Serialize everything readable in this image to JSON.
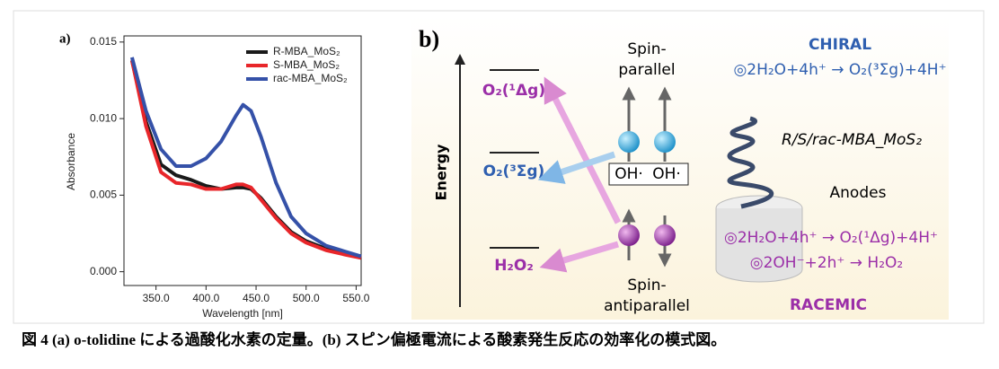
{
  "chart_data": {
    "type": "line",
    "label": "a)",
    "xlabel": "Wavelength [nm]",
    "ylabel": "Absorbance",
    "x": [
      326,
      340,
      355,
      370,
      385,
      400,
      415,
      430,
      437,
      445,
      455,
      470,
      485,
      500,
      520,
      540,
      555
    ],
    "series": [
      {
        "name": "R-MBA_MoS₂",
        "color": "#1a1a1a",
        "values": [
          0.0138,
          0.0098,
          0.007,
          0.0063,
          0.006,
          0.0056,
          0.0054,
          0.0055,
          0.0055,
          0.0054,
          0.0048,
          0.0036,
          0.0026,
          0.002,
          0.0015,
          0.0012,
          0.001
        ]
      },
      {
        "name": "S-MBA_MoS₂",
        "color": "#e8262a",
        "values": [
          0.0138,
          0.0095,
          0.0065,
          0.0058,
          0.0057,
          0.0054,
          0.0054,
          0.0057,
          0.0057,
          0.0055,
          0.0047,
          0.0035,
          0.0025,
          0.0019,
          0.0014,
          0.0011,
          0.0009
        ]
      },
      {
        "name": "rac-MBA_MoS₂",
        "color": "#3551a8",
        "values": [
          0.014,
          0.0105,
          0.008,
          0.0069,
          0.0069,
          0.0074,
          0.0085,
          0.0102,
          0.0109,
          0.0105,
          0.0088,
          0.0058,
          0.0036,
          0.0025,
          0.0017,
          0.0013,
          0.001
        ]
      }
    ],
    "xlim": [
      318,
      555
    ],
    "xticks": [
      {
        "value": 350,
        "label": "350.0"
      },
      {
        "value": 400,
        "label": "400.0"
      },
      {
        "value": 450,
        "label": "450.0"
      },
      {
        "value": 500,
        "label": "500.0"
      },
      {
        "value": 550,
        "label": "550.0"
      }
    ],
    "ylim": [
      -0.0009,
      0.0154
    ],
    "yticks": [
      {
        "value": 0,
        "label": "0.000"
      },
      {
        "value": 0.005,
        "label": "0.005"
      },
      {
        "value": 0.01,
        "label": "0.010"
      },
      {
        "value": 0.015,
        "label": "0.015"
      }
    ],
    "grid": false,
    "legend": "upper right"
  },
  "diagram": {
    "label": "b)",
    "axis_label": "Energy",
    "levels": [
      "O₂(¹Δg)",
      "O₂(³Σg)",
      "H₂O₂"
    ],
    "spin_parallel": [
      "Spin-",
      "parallel"
    ],
    "radicals": [
      "OH·",
      "OH·"
    ],
    "spin_antiparallel": [
      "Spin-",
      "antiparallel"
    ],
    "chiral": {
      "title": "CHIRAL",
      "reactions": [
        "◎2H₂O+4h⁺ → O₂(³Σg)+4H⁺"
      ]
    },
    "catalyst": "R/S/rac-MBA_MoS₂",
    "electrode": "Anodes",
    "racemic": {
      "title": "RACEMIC",
      "reactions": [
        "◎2H₂O+4h⁺ → O₂(¹Δg)+4H⁺",
        "◎2OH⁻+2h⁺ → H₂O₂"
      ]
    }
  },
  "caption": "図 4 (a) o-tolidine による過酸化水素の定量。(b) スピン偏極電流による酸素発生反応の効率化の模式図。"
}
